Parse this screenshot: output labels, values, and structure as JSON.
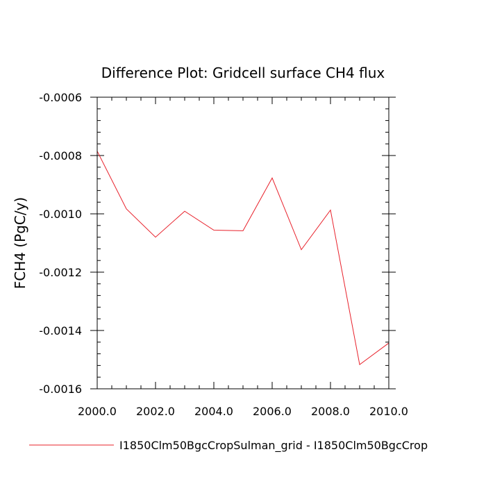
{
  "chart_data": {
    "type": "line",
    "title": "Difference Plot: Gridcell surface CH4 flux",
    "xlabel": "",
    "ylabel": "FCH4  (PgC/y)",
    "xlim": [
      2000.0,
      2010.0
    ],
    "ylim": [
      -0.0016,
      -0.0006
    ],
    "grid": false,
    "legend_position": "bottom",
    "x_tick_labels": [
      "2000.0",
      "2002.0",
      "2004.0",
      "2006.0",
      "2008.0",
      "2010.0"
    ],
    "x_ticks": [
      2000,
      2002,
      2004,
      2006,
      2008,
      2010
    ],
    "y_tick_labels": [
      "-0.0006",
      "-0.0008",
      "-0.0010",
      "-0.0012",
      "-0.0014",
      "-0.0016"
    ],
    "y_ticks": [
      -0.0006,
      -0.0008,
      -0.001,
      -0.0012,
      -0.0014,
      -0.0016
    ],
    "series": [
      {
        "name": "I1850Clm50BgcCropSulman_grid - I1850Clm50BgcCrop",
        "color": "#e8202a",
        "x": [
          2000,
          2001,
          2002,
          2003,
          2004,
          2005,
          2006,
          2007,
          2008,
          2009,
          2010
        ],
        "y": [
          -0.000785,
          -0.000983,
          -0.00108,
          -0.000991,
          -0.001056,
          -0.001058,
          -0.000877,
          -0.001123,
          -0.000987,
          -0.001517,
          -0.001443
        ]
      }
    ]
  }
}
